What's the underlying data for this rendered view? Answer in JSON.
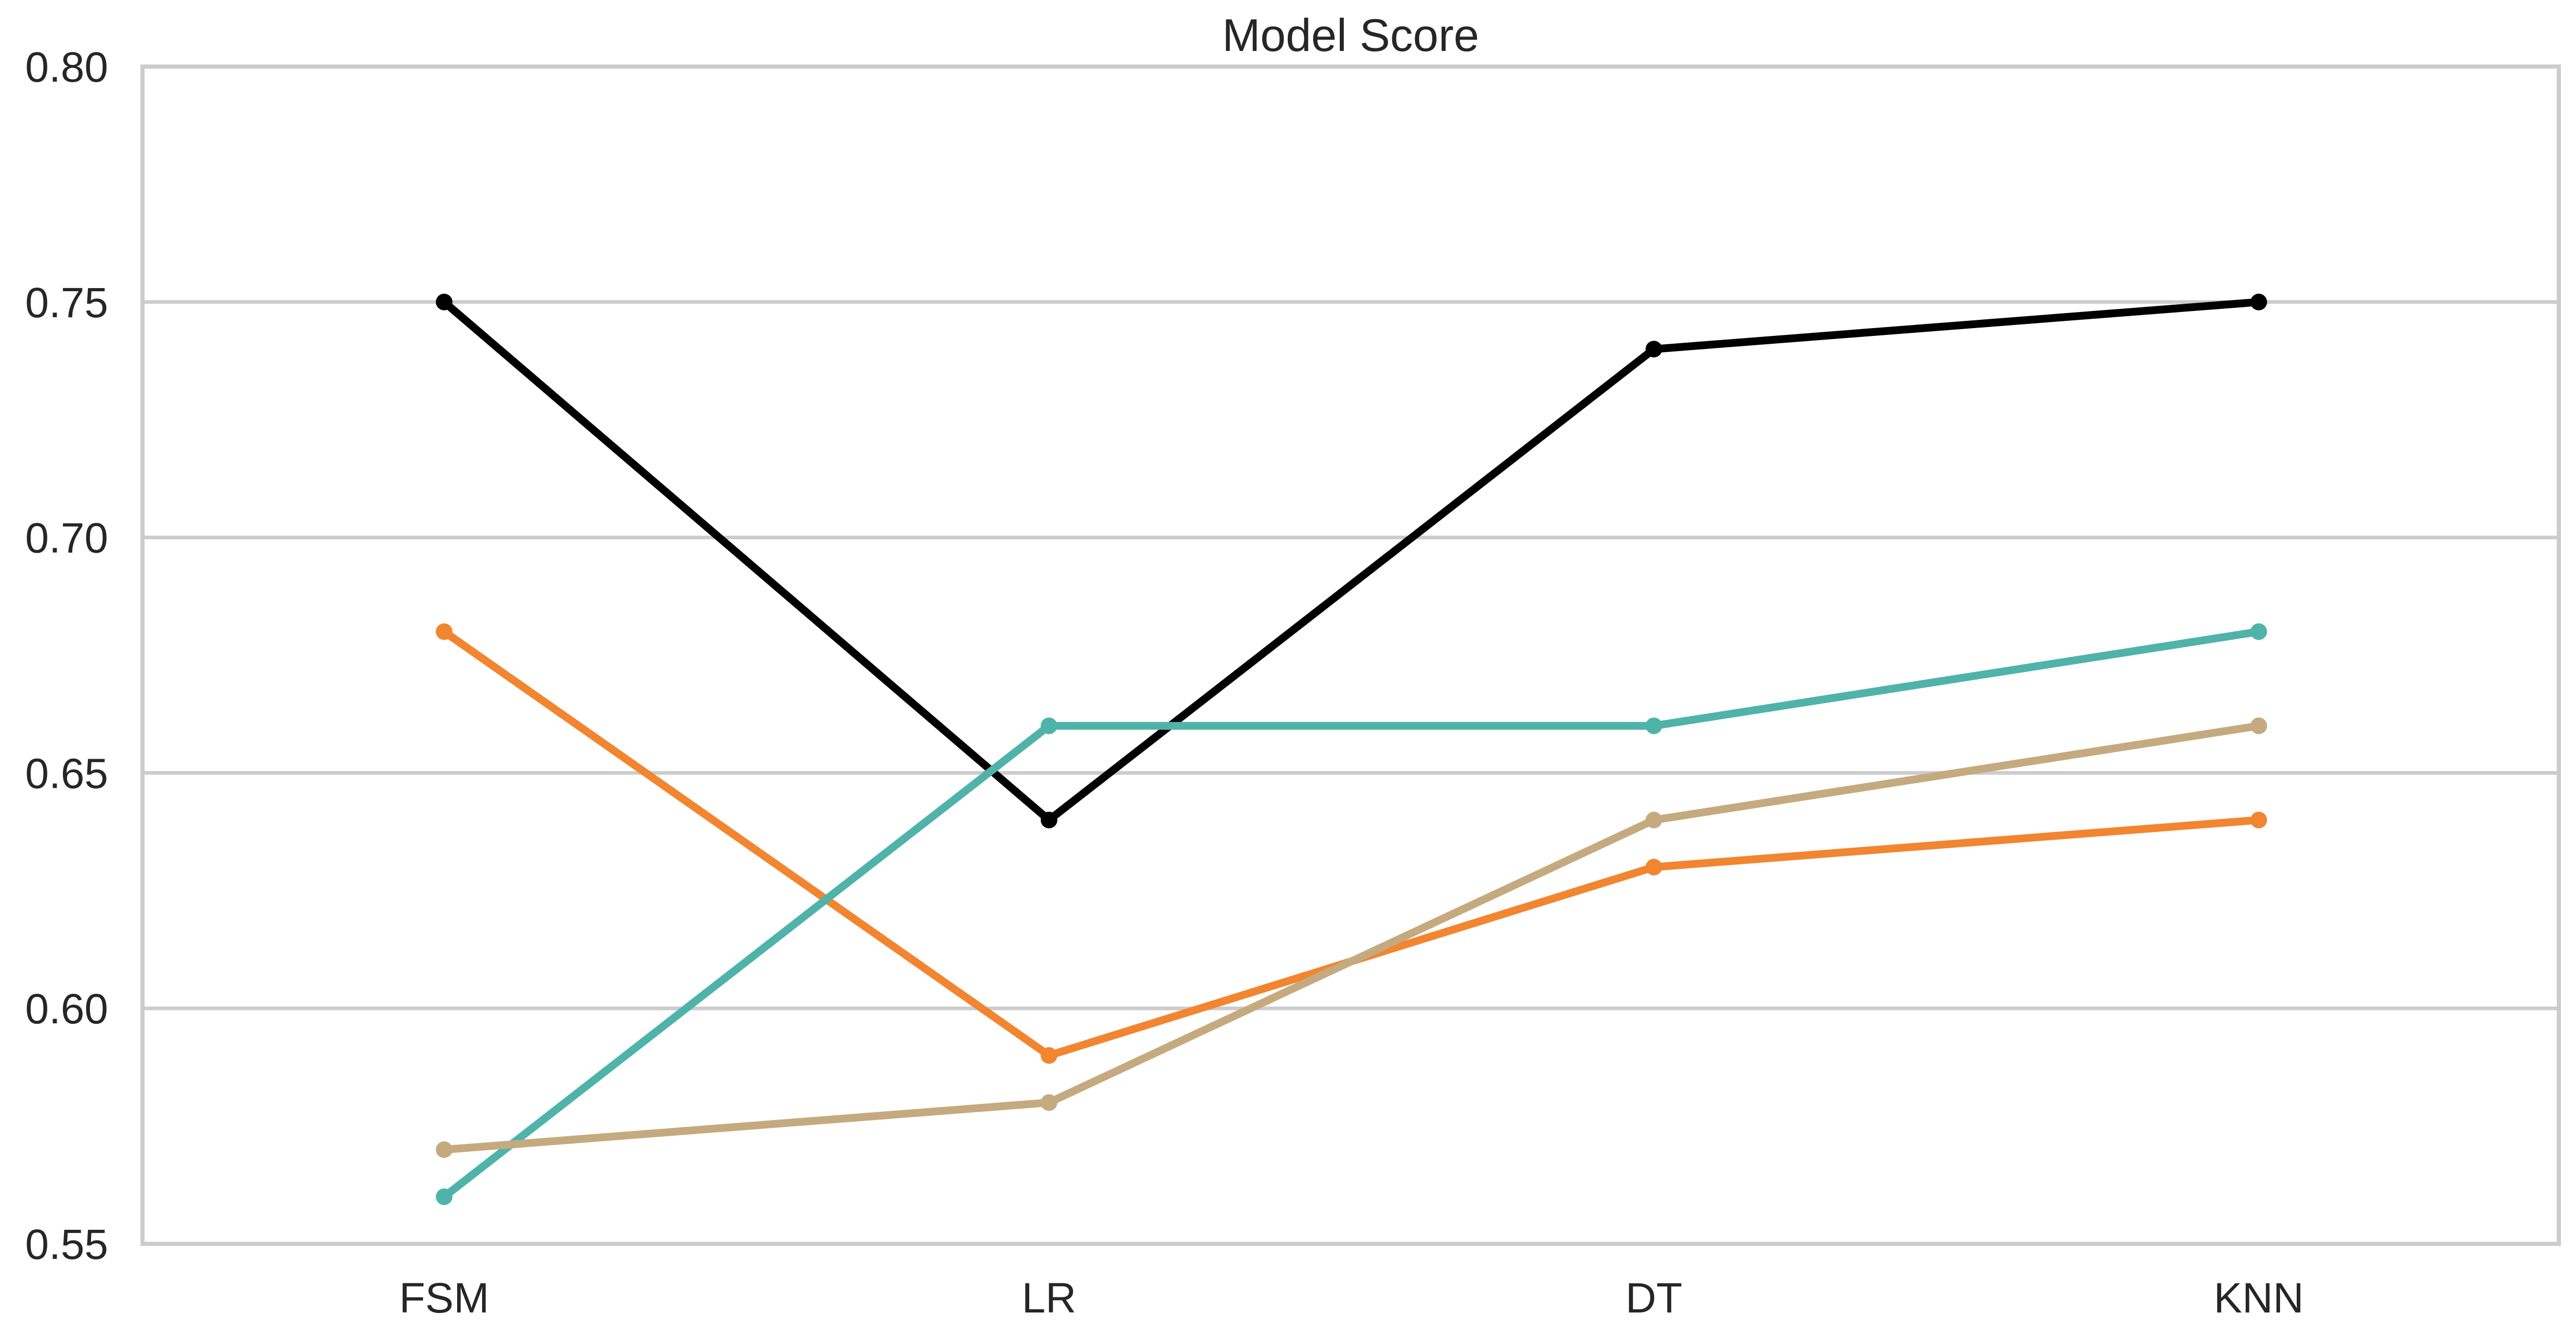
{
  "chart_data": {
    "type": "line",
    "title": "Model Score",
    "xlabel": "",
    "ylabel": "",
    "categories": [
      "FSM",
      "LR",
      "DT",
      "KNN"
    ],
    "ylim": [
      0.55,
      0.8
    ],
    "yticks": [
      "0.55",
      "0.60",
      "0.65",
      "0.70",
      "0.75",
      "0.80"
    ],
    "grid": "horizontal",
    "legend": "none",
    "series": [
      {
        "color": "#000000",
        "values": [
          0.75,
          0.64,
          0.74,
          0.75
        ]
      },
      {
        "color": "#f28530",
        "values": [
          0.68,
          0.59,
          0.63,
          0.64
        ]
      },
      {
        "color": "#4fb3a9",
        "values": [
          0.56,
          0.66,
          0.66,
          0.68
        ]
      },
      {
        "color": "#c5aa80",
        "values": [
          0.57,
          0.58,
          0.64,
          0.66
        ]
      }
    ]
  }
}
